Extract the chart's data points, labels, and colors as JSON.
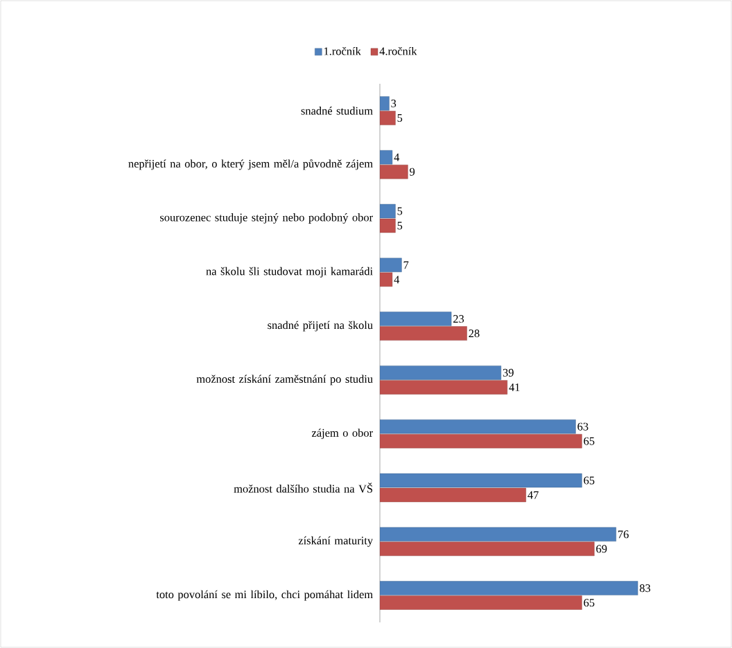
{
  "chart_data": {
    "type": "bar",
    "orientation": "horizontal",
    "categories": [
      "snadné studium",
      "nepřijetí na obor, o který jsem měl/a původně zájem",
      "sourozenec studuje stejný nebo podobný obor",
      "na školu šli studovat moji kamarádi",
      "snadné přijetí na školu",
      "možnost získání zaměstnání po studiu",
      "zájem o obor",
      "možnost dalšího studia na VŠ",
      "získání maturity",
      "toto povolání se mi líbilo, chci pomáhat lidem"
    ],
    "series": [
      {
        "name": "1.ročník",
        "color": "#4f81bd",
        "values": [
          3,
          4,
          5,
          7,
          23,
          39,
          63,
          65,
          76,
          83
        ]
      },
      {
        "name": "4.ročník",
        "color": "#c0504d",
        "values": [
          5,
          9,
          5,
          4,
          28,
          41,
          65,
          47,
          69,
          65
        ]
      }
    ],
    "data_labels": true,
    "legend": "top"
  }
}
